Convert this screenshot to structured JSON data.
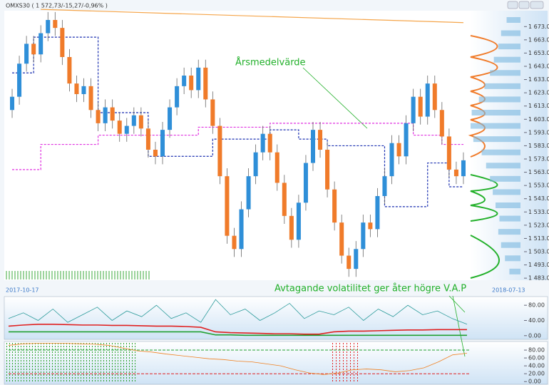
{
  "chart_data": [
    {
      "type": "candlestick",
      "title": "OMXS30 ( 1 572,73/-15,27/-0,96% )",
      "annotations": [
        "Årsmedelvärde",
        "Avtagande volatilitet ger åter högre V.A.P"
      ],
      "date_start": "2017-10-17",
      "date_end": "2018-07-13",
      "up_color": "#2f8fd8",
      "down_color": "#f07b2a",
      "open": [
        1610,
        1620,
        1645,
        1660,
        1652,
        1668,
        1678,
        1672,
        1650,
        1630,
        1622,
        1628,
        1610,
        1600,
        1612,
        1602,
        1592,
        1598,
        1606,
        1596,
        1580,
        1575,
        1595,
        1612,
        1628,
        1636,
        1625,
        1642,
        1618,
        1598,
        1560,
        1515,
        1505,
        1535,
        1560,
        1578,
        1592,
        1578,
        1555,
        1530,
        1512,
        1540,
        1570,
        1595,
        1580,
        1550,
        1525,
        1500,
        1490,
        1505,
        1525,
        1520,
        1545,
        1560,
        1585,
        1575,
        1600,
        1620,
        1605,
        1630,
        1610,
        1590,
        1565,
        1560
      ],
      "high": [
        1626,
        1651,
        1666,
        1666,
        1674,
        1684,
        1684,
        1678,
        1656,
        1636,
        1634,
        1634,
        1616,
        1618,
        1618,
        1608,
        1604,
        1612,
        1612,
        1602,
        1586,
        1601,
        1618,
        1634,
        1642,
        1642,
        1648,
        1648,
        1624,
        1604,
        1566,
        1521,
        1541,
        1566,
        1584,
        1598,
        1598,
        1584,
        1561,
        1536,
        1546,
        1576,
        1601,
        1601,
        1586,
        1556,
        1531,
        1506,
        1511,
        1531,
        1531,
        1551,
        1566,
        1591,
        1591,
        1606,
        1626,
        1626,
        1636,
        1636,
        1616,
        1596,
        1571,
        1578
      ],
      "low": [
        1604,
        1614,
        1639,
        1646,
        1646,
        1662,
        1666,
        1644,
        1624,
        1616,
        1616,
        1604,
        1594,
        1594,
        1596,
        1586,
        1586,
        1592,
        1590,
        1574,
        1569,
        1569,
        1589,
        1606,
        1622,
        1619,
        1619,
        1612,
        1592,
        1554,
        1509,
        1499,
        1499,
        1529,
        1554,
        1572,
        1572,
        1549,
        1524,
        1506,
        1506,
        1534,
        1564,
        1574,
        1544,
        1519,
        1494,
        1484,
        1484,
        1499,
        1514,
        1514,
        1539,
        1554,
        1569,
        1569,
        1594,
        1599,
        1599,
        1604,
        1584,
        1559,
        1554,
        1554
      ],
      "close": [
        1620,
        1645,
        1660,
        1652,
        1668,
        1678,
        1672,
        1650,
        1630,
        1622,
        1628,
        1610,
        1600,
        1612,
        1602,
        1592,
        1598,
        1606,
        1596,
        1580,
        1575,
        1595,
        1612,
        1628,
        1636,
        1625,
        1642,
        1618,
        1598,
        1560,
        1515,
        1505,
        1535,
        1560,
        1578,
        1592,
        1578,
        1555,
        1530,
        1512,
        1540,
        1570,
        1595,
        1580,
        1550,
        1525,
        1500,
        1490,
        1505,
        1525,
        1520,
        1545,
        1560,
        1585,
        1575,
        1600,
        1620,
        1605,
        1630,
        1610,
        1590,
        1565,
        1560,
        1572
      ],
      "lines": [
        {
          "color": "#f5a54a",
          "dash": false,
          "x": [
            4,
            63
          ],
          "values": [
            1686,
            1676
          ]
        },
        {
          "color": "#e030e0",
          "dash": true,
          "x": [
            0,
            4,
            4,
            12,
            12,
            26,
            26,
            36,
            36,
            56,
            56,
            60,
            60,
            63
          ],
          "values": [
            1565,
            1565,
            1584,
            1584,
            1591,
            1591,
            1597,
            1597,
            1600,
            1600,
            1591,
            1591,
            1584,
            1584
          ]
        },
        {
          "color": "#1a2fb0",
          "dash": true,
          "x": [
            0,
            3,
            3,
            12,
            12,
            19,
            19,
            28,
            28,
            36,
            36,
            40,
            40,
            44,
            44,
            52,
            52,
            58,
            58,
            61,
            61,
            63
          ],
          "values": [
            1638,
            1638,
            1665,
            1665,
            1608,
            1608,
            1575,
            1575,
            1588,
            1588,
            1595,
            1595,
            1588,
            1588,
            1583,
            1583,
            1537,
            1537,
            1570,
            1570,
            1552,
            1552
          ]
        }
      ],
      "ylim": [
        1482,
        1685
      ],
      "yticks": [
        {
          "value": 1483,
          "label": "1 483.00"
        },
        {
          "value": 1493,
          "label": "1 493.00"
        },
        {
          "value": 1503,
          "label": "1 503.00"
        },
        {
          "value": 1513,
          "label": "1 513.00"
        },
        {
          "value": 1523,
          "label": "1 523.00"
        },
        {
          "value": 1533,
          "label": "1 533.00"
        },
        {
          "value": 1543,
          "label": "1 543.00"
        },
        {
          "value": 1553,
          "label": "1 553.00"
        },
        {
          "value": 1563,
          "label": "1 563.00"
        },
        {
          "value": 1573,
          "label": "1 573.00"
        },
        {
          "value": 1583,
          "label": "1 583.00"
        },
        {
          "value": 1593,
          "label": "1 593.00"
        },
        {
          "value": 1603,
          "label": "1 603.00"
        },
        {
          "value": 1613,
          "label": "1 613.00"
        },
        {
          "value": 1623,
          "label": "1 623.00"
        },
        {
          "value": 1633,
          "label": "1 633.00"
        },
        {
          "value": 1643,
          "label": "1 643.00"
        },
        {
          "value": 1653,
          "label": "1 653.00"
        },
        {
          "value": 1663,
          "label": "1 663.00"
        },
        {
          "value": 1673,
          "label": "1 673.00"
        }
      ],
      "volume_profile": {
        "color": "#7ab8e0",
        "levels": [
          1488,
          1498,
          1508,
          1518,
          1528,
          1538,
          1548,
          1558,
          1568,
          1578,
          1588,
          1598,
          1608,
          1618,
          1628,
          1638,
          1648,
          1658,
          1668,
          1678
        ],
        "values": [
          20,
          28,
          35,
          40,
          38,
          45,
          50,
          55,
          62,
          70,
          85,
          90,
          88,
          75,
          65,
          55,
          48,
          40,
          35,
          25
        ]
      }
    },
    {
      "type": "line",
      "series": [
        {
          "color": "#2a9a9a",
          "values": [
            45,
            60,
            40,
            70,
            35,
            55,
            75,
            40,
            65,
            50,
            80,
            45,
            60,
            35,
            95,
            55,
            70,
            40,
            60,
            85,
            45,
            65,
            55,
            75,
            40,
            70,
            50,
            80,
            55,
            65,
            45,
            30
          ]
        },
        {
          "color": "#e02020",
          "values": [
            25,
            28,
            30,
            30,
            29,
            28,
            28,
            27,
            27,
            26,
            25,
            25,
            24,
            22,
            10,
            8,
            7,
            6,
            5,
            5,
            4,
            4,
            10,
            12,
            12,
            13,
            14,
            15,
            15,
            16,
            16,
            16
          ]
        },
        {
          "color": "#20a030",
          "values": [
            10,
            10,
            10,
            10,
            10,
            10,
            10,
            10,
            10,
            10,
            10,
            10,
            10,
            10,
            2,
            2,
            1,
            1,
            1,
            1,
            1,
            1,
            1,
            1,
            1,
            1,
            1,
            1,
            1,
            1,
            1,
            1
          ]
        }
      ],
      "ylim": [
        -6,
        99
      ],
      "yticks": [
        {
          "value": 0,
          "label": "0.00"
        },
        {
          "value": 40,
          "label": "40.00"
        },
        {
          "value": 80,
          "label": "80.00"
        }
      ]
    },
    {
      "type": "line",
      "series": [
        {
          "color": "#f08020",
          "values": [
            92,
            96,
            97,
            97,
            97,
            96,
            95,
            92,
            85,
            78,
            75,
            70,
            66,
            62,
            58,
            56,
            52,
            50,
            45,
            40,
            30,
            22,
            18,
            22,
            30,
            32,
            30,
            25,
            28,
            35,
            50,
            68,
            72
          ]
        }
      ],
      "levels": [
        {
          "color": "#20a030",
          "value": 80
        },
        {
          "color": "#e02020",
          "value": 20
        }
      ],
      "ylim": [
        -5,
        100
      ],
      "yticks": [
        {
          "value": 0,
          "label": "0.00"
        },
        {
          "value": 20,
          "label": "20.00"
        },
        {
          "value": 40,
          "label": "40.00"
        },
        {
          "value": 60,
          "label": "60.00"
        },
        {
          "value": 80,
          "label": "80.00"
        }
      ]
    }
  ]
}
